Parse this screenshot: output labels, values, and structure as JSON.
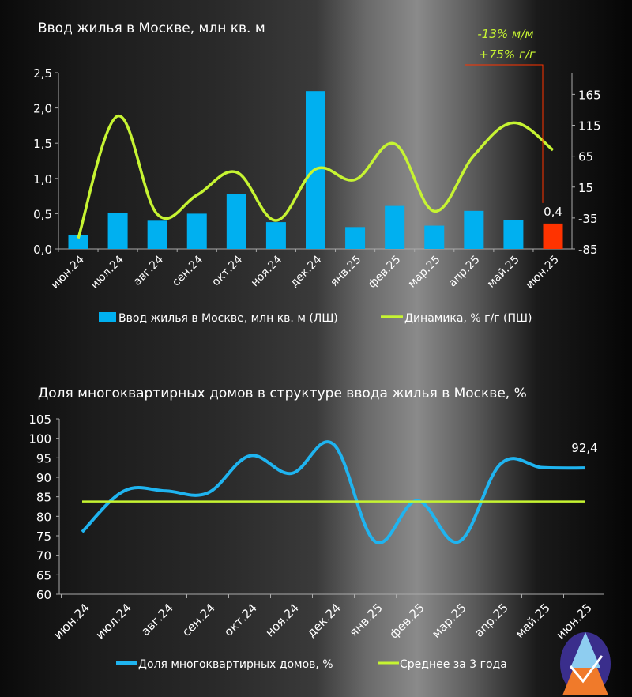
{
  "chart_data": [
    {
      "type": "bar+line",
      "title": "Ввод жилья в Москве, млн кв. м",
      "categories": [
        "июн.24",
        "июл.24",
        "авг.24",
        "сен.24",
        "окт.24",
        "ноя.24",
        "дек.24",
        "янв.25",
        "фев.25",
        "мар.25",
        "апр.25",
        "май.25",
        "июн.25"
      ],
      "series": [
        {
          "name": "Ввод жилья в Москве, млн кв. м (ЛШ)",
          "type": "bar",
          "axis": "left",
          "values": [
            0.2,
            0.51,
            0.4,
            0.5,
            0.78,
            0.38,
            2.24,
            0.31,
            0.61,
            0.33,
            0.54,
            0.41,
            0.36
          ],
          "color": "#00b0f0",
          "highlight_color": "#ff3300",
          "highlight_index": 12
        },
        {
          "name": "Динамика, % г/г (ПШ)",
          "type": "line",
          "axis": "right",
          "values": [
            -68,
            130,
            -29,
            2,
            39,
            -39,
            44,
            27,
            85,
            -24,
            66,
            119,
            75
          ],
          "color": "#c6f432"
        }
      ],
      "ylim": [
        0,
        2.5
      ],
      "yticks": [
        "0,0",
        "0,5",
        "1,0",
        "1,5",
        "2,0",
        "2,5"
      ],
      "ylim2": [
        -85,
        200
      ],
      "yticks2": [
        "-85",
        "-35",
        "15",
        "65",
        "115",
        "165"
      ],
      "data_label": "0,4",
      "annotations": [
        "-13% м/м",
        "+75% г/г"
      ],
      "annotation_color": "#ff3300",
      "legend": "bottom",
      "grid": false
    },
    {
      "type": "line",
      "title": "Доля многоквартирных домов в структуре ввода жилья в Москве, %",
      "categories": [
        "июн.24",
        "июл.24",
        "авг.24",
        "сен.24",
        "окт.24",
        "ноя.24",
        "дек.24",
        "янв.25",
        "фев.25",
        "мар.25",
        "апр.25",
        "май.25",
        "июн.25"
      ],
      "series": [
        {
          "name": "Доля многоквартирных домов, %",
          "values": [
            76,
            86.5,
            86.5,
            86,
            95.5,
            91,
            98.5,
            73.5,
            84,
            73.5,
            93.5,
            92.5,
            92.4
          ],
          "color": "#1fb4f0"
        },
        {
          "name": "Среднее за 3 года",
          "values": [
            83.8,
            83.8,
            83.8,
            83.8,
            83.8,
            83.8,
            83.8,
            83.8,
            83.8,
            83.8,
            83.8,
            83.8,
            83.8
          ],
          "color": "#c6f432"
        }
      ],
      "ylim": [
        60,
        105
      ],
      "yticks": [
        "60",
        "65",
        "70",
        "75",
        "80",
        "85",
        "90",
        "95",
        "100",
        "105"
      ],
      "data_label": "92,4",
      "legend": "bottom",
      "grid": false
    }
  ],
  "logo": {
    "letter": "A"
  }
}
